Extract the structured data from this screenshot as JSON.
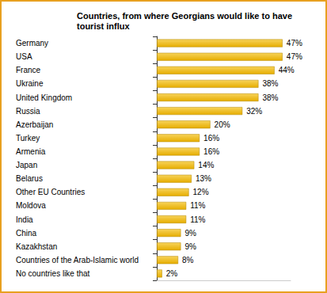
{
  "chart_data": {
    "type": "bar",
    "title": "Countries, from where Georgians would like to have\ntourist influx",
    "orientation": "horizontal",
    "categories": [
      "Germany",
      "USA",
      "France",
      "Ukraine",
      "United Kingdom",
      "Russia",
      "Azerbaijan",
      "Turkey",
      "Armenia",
      "Japan",
      "Belarus",
      "Other EU Countries",
      "Moldova",
      "India",
      "China",
      "Kazakhstan",
      "Countries of the Arab-Islamic world",
      "No countries like that"
    ],
    "values": [
      47,
      47,
      44,
      38,
      38,
      32,
      20,
      16,
      16,
      14,
      13,
      12,
      11,
      11,
      9,
      9,
      8,
      2
    ],
    "value_labels": [
      "47%",
      "47%",
      "44%",
      "38%",
      "38%",
      "32%",
      "20%",
      "16%",
      "16%",
      "14%",
      "13%",
      "12%",
      "11%",
      "11%",
      "9%",
      "9%",
      "8%",
      "2%"
    ],
    "color": "#e6ad00",
    "xlim": [
      0,
      50
    ],
    "grid": false,
    "data_labels": true,
    "tick_labels": "y"
  }
}
